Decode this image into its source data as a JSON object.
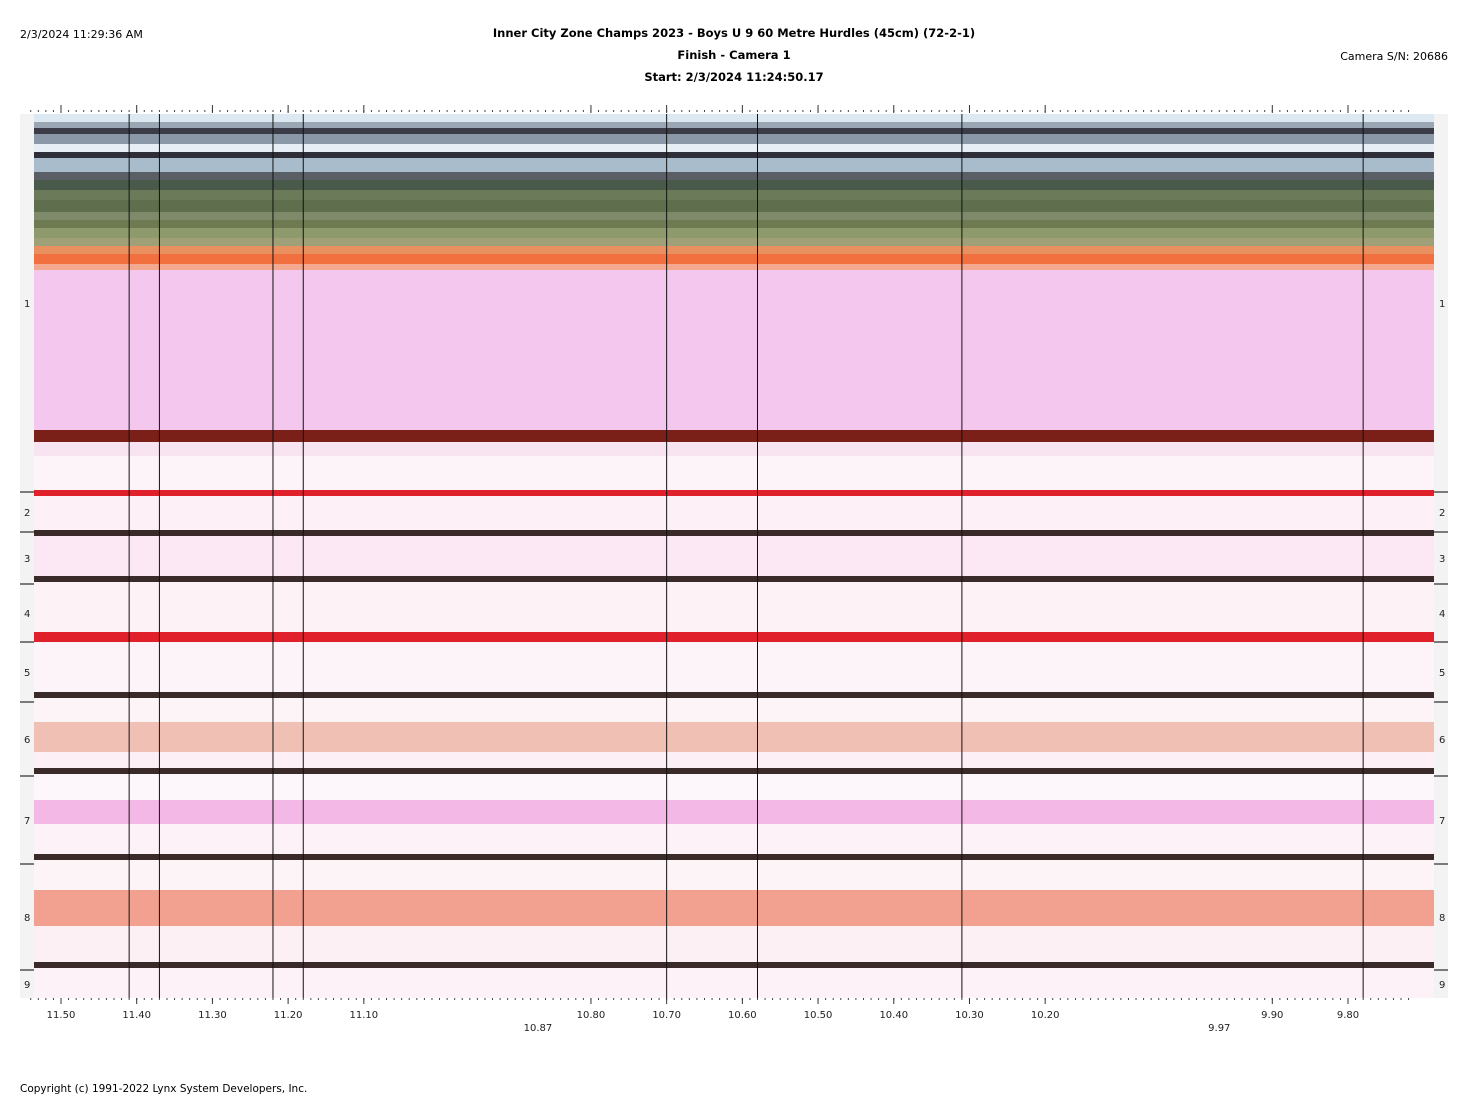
{
  "header": {
    "datetime": "2/3/2024 11:29:36 AM",
    "title": "Inner City Zone Champs 2023 - Boys U 9 60 Metre Hurdles (45cm) (72-2-1)",
    "subtitle": "Finish - Camera 1",
    "start": "Start: 2/3/2024 11:24:50.17",
    "camera_sn": "Camera S/N: 20686"
  },
  "lanes": [
    "1",
    "2",
    "3",
    "4",
    "5",
    "6",
    "7",
    "8",
    "9"
  ],
  "time_axis": {
    "range": [
      11.54,
      9.72
    ],
    "major_labels": [
      "11.50",
      "11.40",
      "11.30",
      "11.20",
      "11.10",
      "10.80",
      "10.70",
      "10.60",
      "10.50",
      "10.40",
      "10.30",
      "10.20",
      "9.90",
      "9.80"
    ],
    "major_values": [
      11.5,
      11.4,
      11.3,
      11.2,
      11.1,
      10.8,
      10.7,
      10.6,
      10.5,
      10.4,
      10.3,
      10.2,
      9.9,
      9.8
    ],
    "sub_labels": [
      {
        "label": "10.87",
        "value": 10.87
      },
      {
        "label": "9.97",
        "value": 9.97
      }
    ]
  },
  "athlete_marker_times": [
    11.41,
    11.37,
    11.22,
    11.18,
    10.7,
    10.58,
    10.31,
    9.78
  ],
  "colors": {
    "track_pink": "#f6c8ee",
    "lane_line": "#3a2a2a",
    "red_line": "#e0202a",
    "marker": "#111111"
  },
  "footer": {
    "copyright": "Copyright (c) 1991-2022 Lynx System Developers, Inc."
  }
}
